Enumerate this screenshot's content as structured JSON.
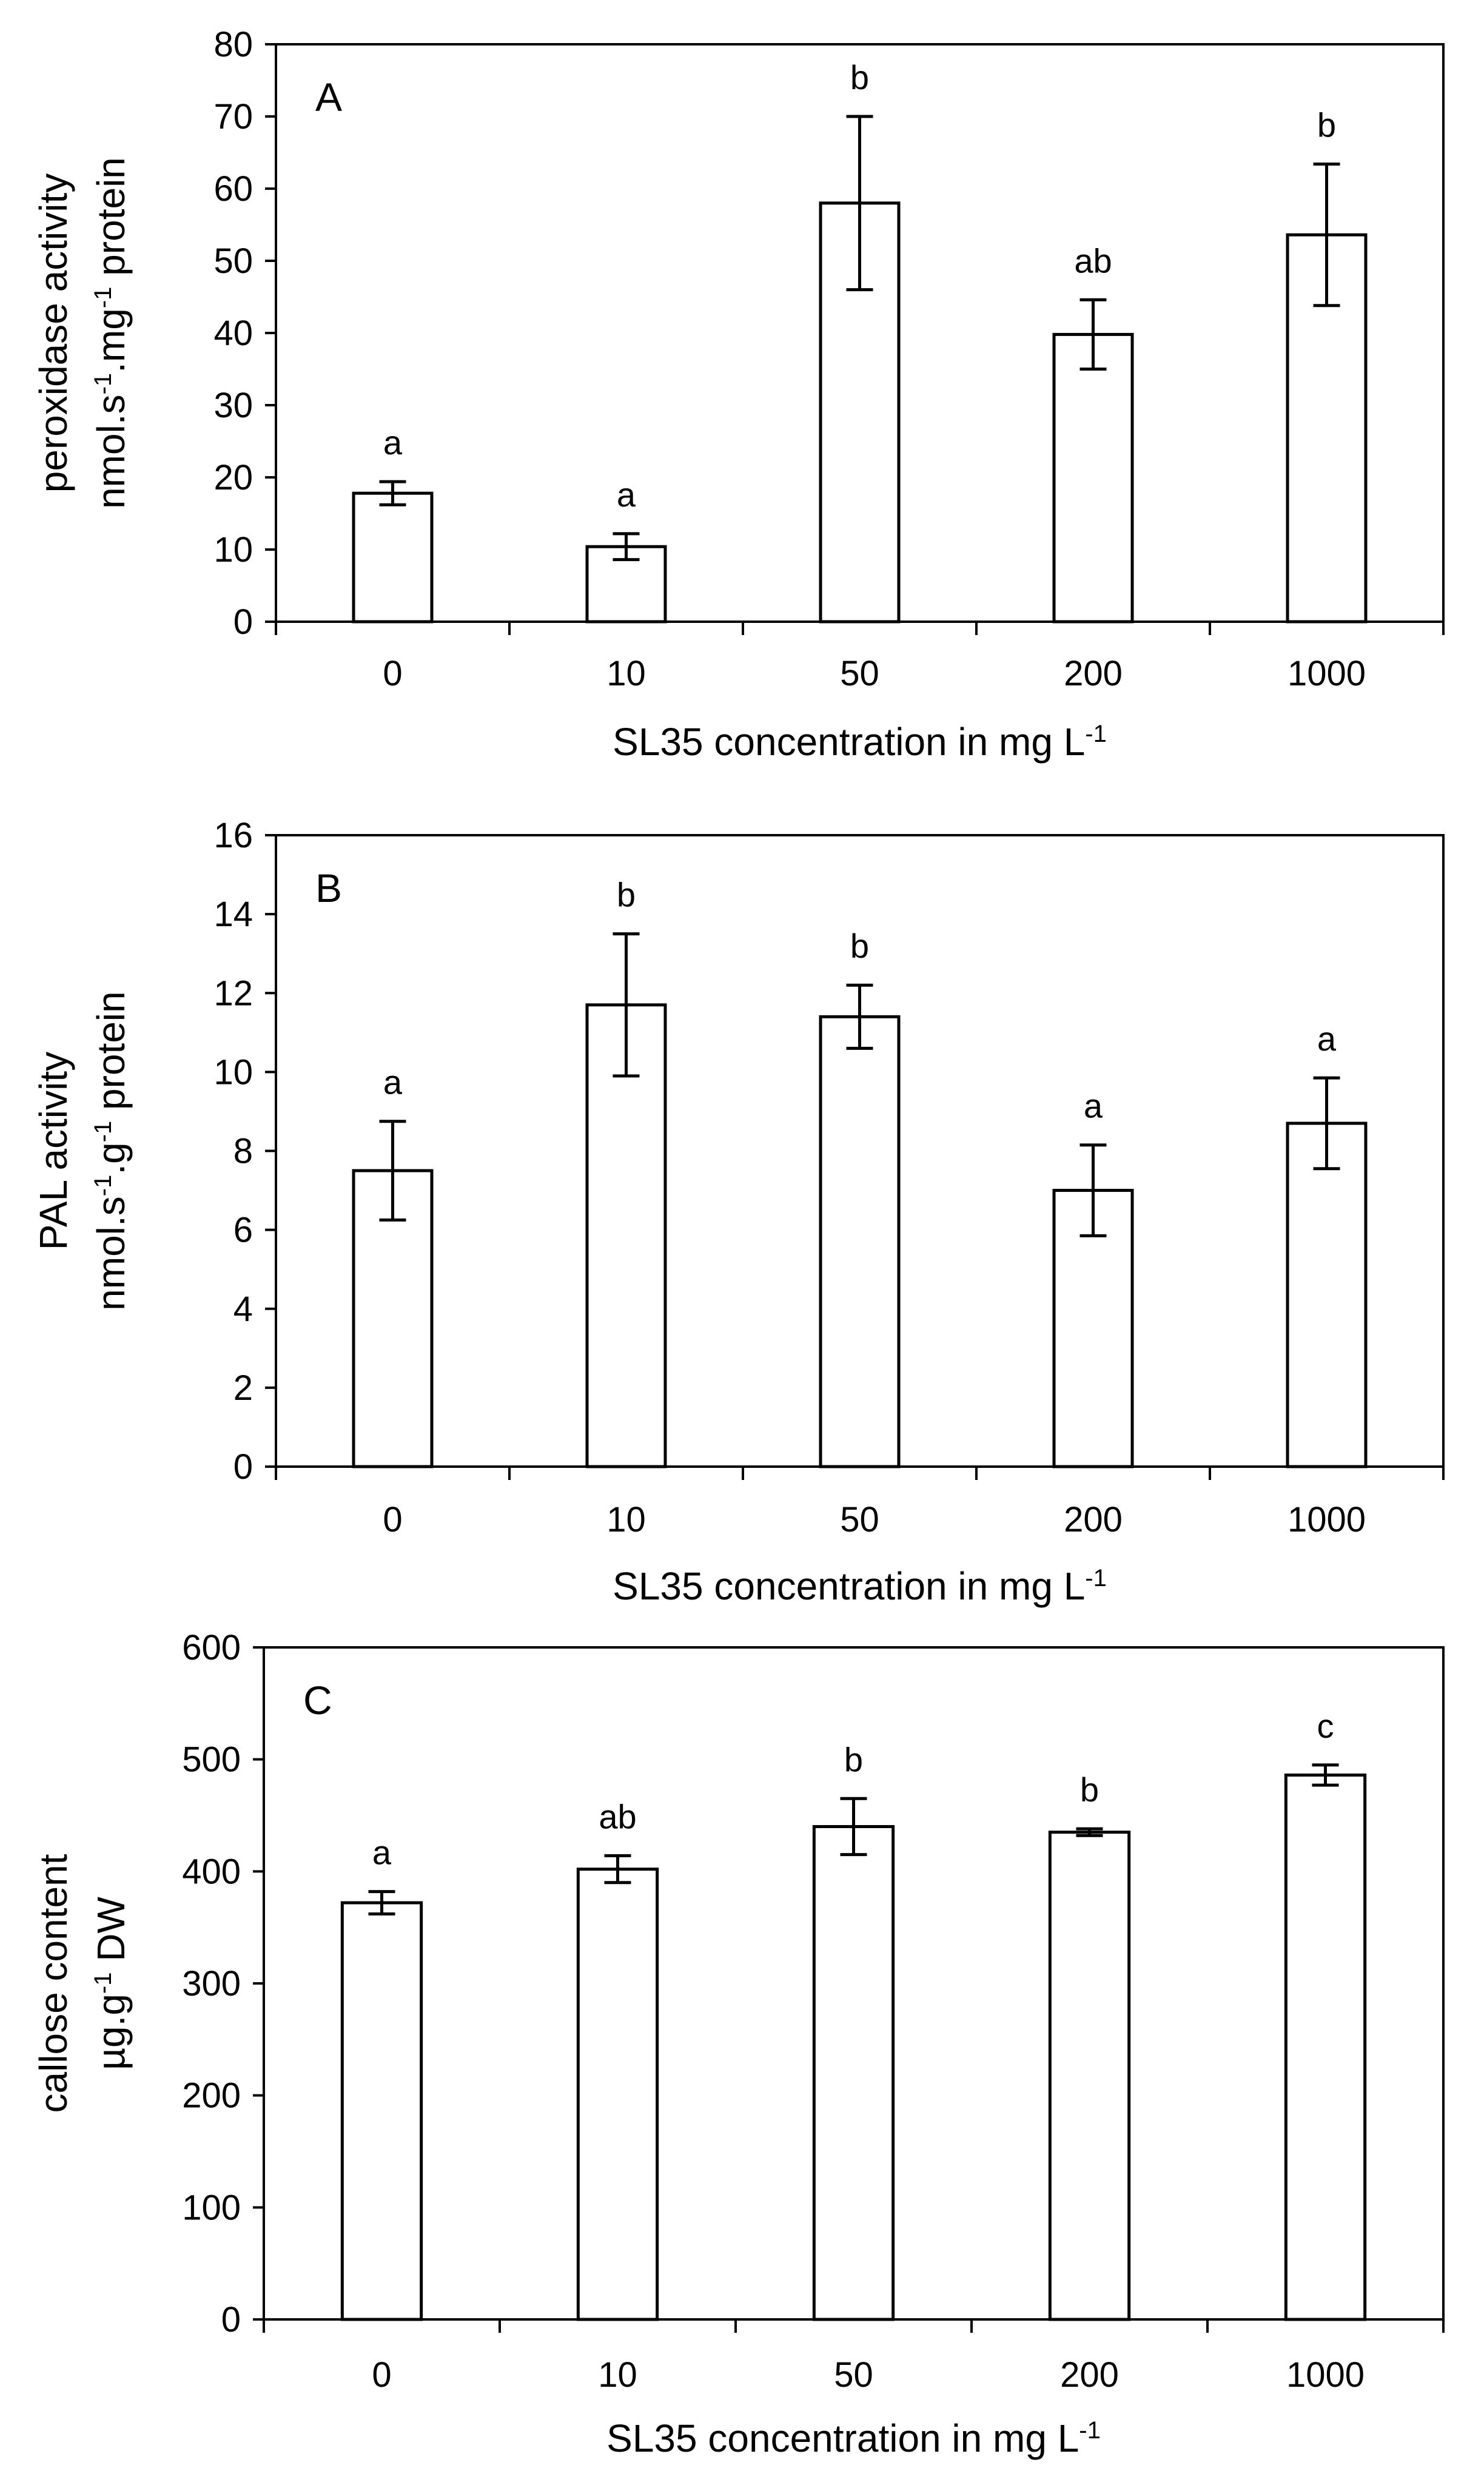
{
  "chart_data": [
    {
      "panel": "A",
      "type": "bar",
      "ylabel_line1": "peroxidase activity",
      "ylabel_line2": "nmol.s-1.mg-1 protein",
      "ylabel_base": "nmol.s",
      "ylabel_exp1": "-1",
      "ylabel_mid": ".mg",
      "ylabel_exp2": "-1",
      "ylabel_tail": " protein",
      "xlabel": "SL35 concentration in mg L-1",
      "xlabel_base": "SL35 concentration in mg L",
      "xlabel_exp": "-1",
      "categories": [
        "0",
        "10",
        "50",
        "200",
        "1000"
      ],
      "values": [
        17.8,
        10.4,
        58,
        39.8,
        53.6
      ],
      "errors": [
        1.6,
        1.8,
        12,
        4.8,
        9.8
      ],
      "significance": [
        "a",
        "a",
        "b",
        "ab",
        "b"
      ],
      "ylim": [
        0,
        80
      ],
      "yticks": [
        0,
        10,
        20,
        30,
        40,
        50,
        60,
        70,
        80
      ],
      "ytick_labels": [
        "0",
        "10",
        "20",
        "30",
        "40",
        "50",
        "60",
        "70",
        "80"
      ]
    },
    {
      "panel": "B",
      "type": "bar",
      "ylabel_line1": "PAL activity",
      "ylabel_line2": "nmol.s-1.g-1 protein",
      "ylabel_base": "nmol.s",
      "ylabel_exp1": "-1",
      "ylabel_mid": ".g",
      "ylabel_exp2": "-1",
      "ylabel_tail": " protein",
      "xlabel": "SL35 concentration in mg L-1",
      "xlabel_base": "SL35 concentration in mg L",
      "xlabel_exp": "-1",
      "categories": [
        "0",
        "10",
        "50",
        "200",
        "1000"
      ],
      "values": [
        7.5,
        11.7,
        11.4,
        7.0,
        8.7
      ],
      "errors": [
        1.25,
        1.8,
        0.8,
        1.15,
        1.15
      ],
      "significance": [
        "a",
        "b",
        "b",
        "a",
        "a"
      ],
      "ylim": [
        0,
        16
      ],
      "yticks": [
        0,
        2,
        4,
        6,
        8,
        10,
        12,
        14,
        16
      ],
      "ytick_labels": [
        "0",
        "2",
        "4",
        "6",
        "8",
        "10",
        "12",
        "14",
        "16"
      ]
    },
    {
      "panel": "C",
      "type": "bar",
      "ylabel_line1": "callose content",
      "ylabel_line2": "µg.g-1 DW",
      "ylabel_base": "µg.g",
      "ylabel_exp1": "-1",
      "ylabel_mid": "",
      "ylabel_exp2": "",
      "ylabel_tail": " DW",
      "xlabel": "SL35 concentration in mg L-1",
      "xlabel_base": "SL35 concentration in mg L",
      "xlabel_exp": "-1",
      "categories": [
        "0",
        "10",
        "50",
        "200",
        "1000"
      ],
      "values": [
        372,
        402,
        440,
        435,
        486
      ],
      "errors": [
        10,
        12,
        25,
        3,
        9
      ],
      "significance": [
        "a",
        "ab",
        "b",
        "b",
        "c"
      ],
      "ylim": [
        0,
        600
      ],
      "yticks": [
        0,
        100,
        200,
        300,
        400,
        500,
        600
      ],
      "ytick_labels": [
        "0",
        "100",
        "200",
        "300",
        "400",
        "500",
        "600"
      ]
    }
  ]
}
